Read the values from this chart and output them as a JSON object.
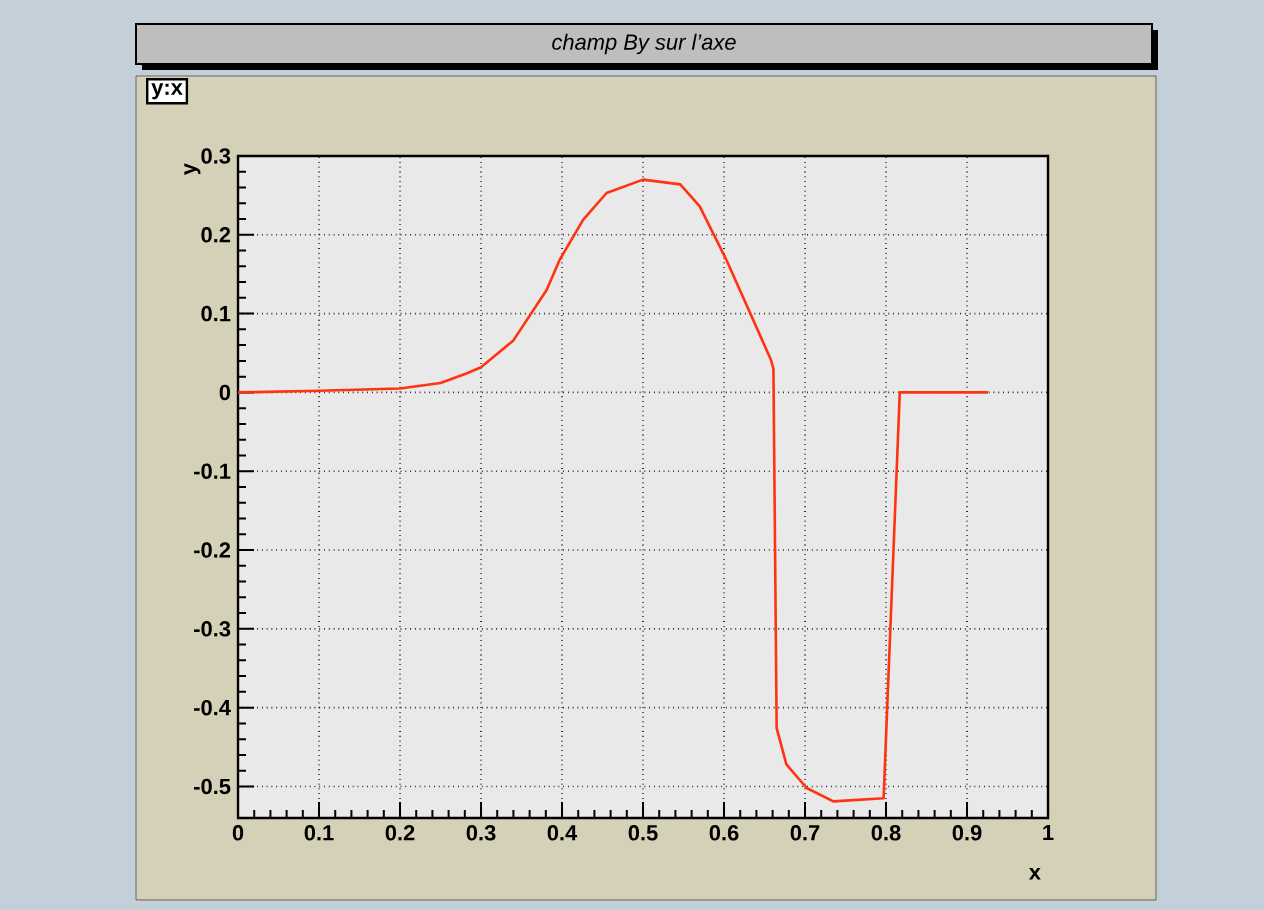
{
  "chart_data": {
    "type": "line",
    "title": "champ By sur l’axe",
    "xlabel": "x",
    "ylabel": "y",
    "annotations": [
      "y:x"
    ],
    "xlim": [
      0,
      1
    ],
    "ylim": [
      -0.54,
      0.3
    ],
    "xticks": [
      0,
      0.1,
      0.2,
      0.3,
      0.4,
      0.5,
      0.6,
      0.7,
      0.8,
      0.9,
      1
    ],
    "yticks": [
      -0.5,
      -0.4,
      -0.3,
      -0.2,
      -0.1,
      0,
      0.1,
      0.2,
      0.3
    ],
    "grid": true,
    "marker": "none",
    "line_style": "solid",
    "series": [
      {
        "color": "#ff3311",
        "x": [
          0,
          0.1,
          0.2,
          0.25,
          0.282,
          0.3,
          0.34,
          0.381,
          0.397,
          0.426,
          0.455,
          0.5,
          0.546,
          0.57,
          0.603,
          0.636,
          0.658,
          0.661,
          0.665,
          0.677,
          0.702,
          0.735,
          0.797,
          0.817,
          0.926
        ],
        "values": [
          0,
          0.002,
          0.005,
          0.012,
          0.024,
          0.032,
          0.066,
          0.13,
          0.168,
          0.219,
          0.253,
          0.27,
          0.264,
          0.236,
          0.168,
          0.092,
          0.041,
          0.03,
          -0.426,
          -0.472,
          -0.502,
          -0.519,
          -0.515,
          0,
          0
        ]
      }
    ]
  }
}
